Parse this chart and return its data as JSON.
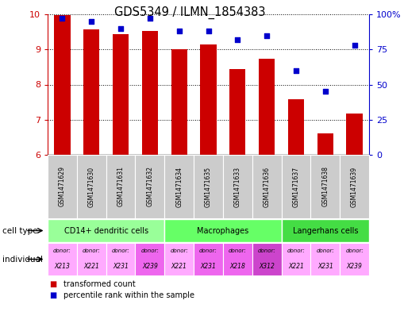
{
  "title": "GDS5349 / ILMN_1854383",
  "samples": [
    "GSM1471629",
    "GSM1471630",
    "GSM1471631",
    "GSM1471632",
    "GSM1471634",
    "GSM1471635",
    "GSM1471633",
    "GSM1471636",
    "GSM1471637",
    "GSM1471638",
    "GSM1471639"
  ],
  "transformed_counts": [
    9.97,
    9.57,
    9.44,
    9.52,
    9.01,
    9.15,
    8.43,
    8.74,
    7.58,
    6.6,
    7.18
  ],
  "percentile_ranks": [
    97,
    95,
    90,
    97,
    88,
    88,
    82,
    85,
    60,
    45,
    78
  ],
  "ylim_left": [
    6,
    10
  ],
  "ylim_right": [
    0,
    100
  ],
  "yticks_left": [
    6,
    7,
    8,
    9,
    10
  ],
  "yticks_right": [
    0,
    25,
    50,
    75,
    100
  ],
  "bar_color": "#cc0000",
  "dot_color": "#0000cc",
  "bar_bottom": 6,
  "cell_types": [
    {
      "label": "CD14+ dendritic cells",
      "start": 0,
      "end": 4,
      "color": "#99ff99"
    },
    {
      "label": "Macrophages",
      "start": 4,
      "end": 8,
      "color": "#66ff66"
    },
    {
      "label": "Langerhans cells",
      "start": 8,
      "end": 11,
      "color": "#44dd44"
    }
  ],
  "individuals": [
    {
      "donor": "X213",
      "col": 0,
      "color": "#ffaaff"
    },
    {
      "donor": "X221",
      "col": 1,
      "color": "#ffaaff"
    },
    {
      "donor": "X231",
      "col": 2,
      "color": "#ffaaff"
    },
    {
      "donor": "X239",
      "col": 3,
      "color": "#ee66ee"
    },
    {
      "donor": "X221",
      "col": 4,
      "color": "#ffaaff"
    },
    {
      "donor": "X231",
      "col": 5,
      "color": "#ee66ee"
    },
    {
      "donor": "X218",
      "col": 6,
      "color": "#ee66ee"
    },
    {
      "donor": "X312",
      "col": 7,
      "color": "#cc44cc"
    },
    {
      "donor": "X221",
      "col": 8,
      "color": "#ffaaff"
    },
    {
      "donor": "X231",
      "col": 9,
      "color": "#ffaaff"
    },
    {
      "donor": "X239",
      "col": 10,
      "color": "#ffaaff"
    }
  ],
  "label_color_left": "#cc0000",
  "label_color_right": "#0000cc",
  "grid_color": "#000000",
  "bg_color": "#ffffff",
  "sample_bg_color": "#cccccc"
}
